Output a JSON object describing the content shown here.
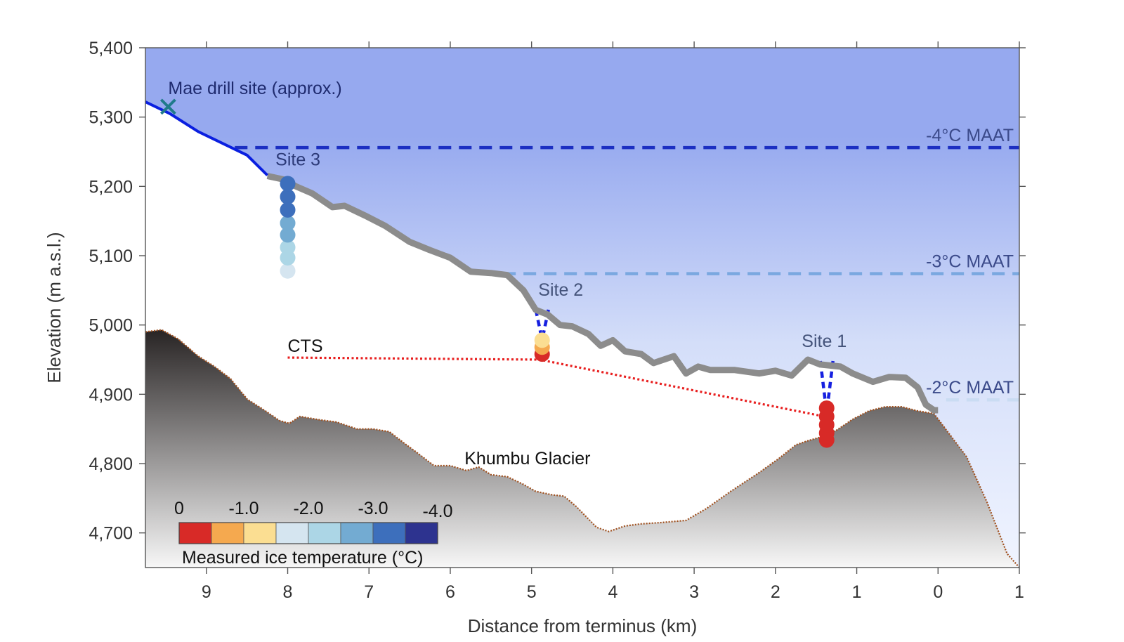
{
  "chart_data": {
    "type": "line",
    "xlabel": "Distance from terminus (km)",
    "ylabel": "Elevation (m a.s.l.)",
    "xlim": [
      9.75,
      -1
    ],
    "ylim": [
      4650,
      5400
    ],
    "x_axis_reversed": true,
    "x_ticks": [
      9,
      8,
      7,
      6,
      5,
      4,
      3,
      2,
      1,
      0,
      -1
    ],
    "x_tick_labels": [
      "9",
      "8",
      "7",
      "6",
      "5",
      "4",
      "3",
      "2",
      "1",
      "0",
      "1"
    ],
    "y_ticks": [
      4700,
      4800,
      4900,
      5000,
      5100,
      5200,
      5300,
      5400
    ],
    "y_tick_labels": [
      "4,700",
      "4,800",
      "4,900",
      "5,000",
      "5,100",
      "5,200",
      "5,300",
      "5,400"
    ],
    "surface_upper": {
      "color": "#0a1fe0",
      "x": [
        9.75,
        9.45,
        9.1,
        8.5,
        8.25
      ],
      "y": [
        5322,
        5305,
        5279,
        5245,
        5216
      ]
    },
    "surface": {
      "color": "#8c8c8c",
      "x": [
        8.25,
        8.05,
        7.9,
        7.7,
        7.45,
        7.3,
        7.05,
        6.8,
        6.5,
        6.25,
        6.0,
        5.75,
        5.5,
        5.3,
        5.1,
        4.95,
        4.8,
        4.65,
        4.5,
        4.3,
        4.15,
        4.0,
        3.85,
        3.65,
        3.5,
        3.25,
        3.1,
        2.95,
        2.8,
        2.5,
        2.2,
        2.0,
        1.8,
        1.6,
        1.45,
        1.2,
        1.05,
        0.8,
        0.6,
        0.4,
        0.25,
        0.15,
        0.05,
        0.0
      ],
      "y": [
        5215,
        5210,
        5200,
        5190,
        5170,
        5172,
        5158,
        5143,
        5120,
        5108,
        5097,
        5077,
        5075,
        5072,
        5050,
        5022,
        5015,
        5000,
        4998,
        4987,
        4970,
        4978,
        4962,
        4958,
        4945,
        4955,
        4930,
        4940,
        4935,
        4935,
        4930,
        4934,
        4927,
        4950,
        4943,
        4940,
        4930,
        4918,
        4925,
        4924,
        4910,
        4885,
        4877,
        4877
      ]
    },
    "bed": {
      "x": [
        9.75,
        9.55,
        9.35,
        9.1,
        8.9,
        8.7,
        8.5,
        8.3,
        8.1,
        7.98,
        7.85,
        7.6,
        7.4,
        7.15,
        6.95,
        6.75,
        6.55,
        6.4,
        6.2,
        6.0,
        5.8,
        5.65,
        5.5,
        5.3,
        5.1,
        4.95,
        4.75,
        4.6,
        4.45,
        4.2,
        4.05,
        3.85,
        3.65,
        3.4,
        3.1,
        2.85,
        2.55,
        2.2,
        1.95,
        1.75,
        1.6,
        1.45,
        1.25,
        1.05,
        0.85,
        0.65,
        0.45,
        0.25,
        0.05,
        -0.35,
        -0.6,
        -0.85,
        -1.0
      ],
      "y": [
        4990,
        4993,
        4980,
        4955,
        4940,
        4922,
        4893,
        4878,
        4862,
        4858,
        4868,
        4863,
        4860,
        4850,
        4850,
        4846,
        4828,
        4815,
        4797,
        4797,
        4790,
        4795,
        4784,
        4781,
        4770,
        4760,
        4755,
        4753,
        4738,
        4708,
        4702,
        4710,
        4713,
        4715,
        4718,
        4735,
        4760,
        4787,
        4808,
        4827,
        4833,
        4838,
        4848,
        4864,
        4876,
        4882,
        4882,
        4876,
        4872,
        4810,
        4745,
        4670,
        4650
      ]
    },
    "maat_lines": [
      {
        "label": "-4°C MAAT",
        "elevation": 5256,
        "x_start": 8.65,
        "color": "#1c2fc2"
      },
      {
        "label": "-3°C MAAT",
        "elevation": 5074,
        "x_start": 5.35,
        "color": "#7aa8e0"
      },
      {
        "label": "-2°C MAAT",
        "elevation": 4892,
        "x_start": -0.1,
        "color": "#cadcf3"
      }
    ],
    "cts": {
      "label": "CTS",
      "color": "#e81f1f",
      "x": [
        8.0,
        4.9,
        1.4
      ],
      "y": [
        4953,
        4950,
        4868
      ]
    },
    "sites": [
      {
        "label": "Site 1",
        "x": 1.4,
        "label_elevation": 4968,
        "top_elevation": 4948
      },
      {
        "label": "Site 2",
        "x": 4.9,
        "label_elevation": 5042,
        "top_elevation": 5022
      },
      {
        "label": "Site 3",
        "x": 8.15,
        "label_elevation": 5230
      }
    ],
    "temperature_measurements": [
      {
        "site": "Site 3",
        "x": 8.0,
        "elevation": 5204,
        "temperature": -3.25
      },
      {
        "site": "Site 3",
        "x": 8.0,
        "elevation": 5185,
        "temperature": -3.25
      },
      {
        "site": "Site 3",
        "x": 8.0,
        "elevation": 5166,
        "temperature": -3.25
      },
      {
        "site": "Site 3",
        "x": 8.0,
        "elevation": 5147,
        "temperature": -2.75
      },
      {
        "site": "Site 3",
        "x": 8.0,
        "elevation": 5130,
        "temperature": -2.75
      },
      {
        "site": "Site 3",
        "x": 8.0,
        "elevation": 5112,
        "temperature": -2.25
      },
      {
        "site": "Site 3",
        "x": 8.0,
        "elevation": 5097,
        "temperature": -2.25
      },
      {
        "site": "Site 3",
        "x": 8.0,
        "elevation": 5078,
        "temperature": -1.75
      },
      {
        "site": "Site 2",
        "x": 4.87,
        "elevation": 4978,
        "temperature": -1.25
      },
      {
        "site": "Site 2",
        "x": 4.87,
        "elevation": 4968,
        "temperature": -0.75
      },
      {
        "site": "Site 2",
        "x": 4.87,
        "elevation": 4958,
        "temperature": -0.25
      },
      {
        "site": "Site 1",
        "x": 1.37,
        "elevation": 4880,
        "temperature": -0.25
      },
      {
        "site": "Site 1",
        "x": 1.37,
        "elevation": 4868,
        "temperature": -0.25
      },
      {
        "site": "Site 1",
        "x": 1.37,
        "elevation": 4856,
        "temperature": -0.25
      },
      {
        "site": "Site 1",
        "x": 1.37,
        "elevation": 4844,
        "temperature": -0.25
      },
      {
        "site": "Site 1",
        "x": 1.37,
        "elevation": 4834,
        "temperature": -0.25
      }
    ],
    "annotations": [
      {
        "text": "Mae drill site (approx.)",
        "marker": "x",
        "x": 9.47,
        "elevation": 5315,
        "marker_color": "#1f7a8a"
      },
      {
        "text": "Khumbu Glacier",
        "x": 5.05,
        "elevation": 4808
      }
    ],
    "colorbar": {
      "title": "Measured ice temperature (°C)",
      "tick_labels": [
        "0",
        "-1.0",
        "-2.0",
        "-3.0",
        "-4.0"
      ],
      "range": [
        0,
        -4
      ],
      "bins": [
        {
          "range": [
            0,
            -0.5
          ],
          "color": "#d82a27"
        },
        {
          "range": [
            -0.5,
            -1.0
          ],
          "color": "#f5a94f"
        },
        {
          "range": [
            -1.0,
            -1.5
          ],
          "color": "#fbde92"
        },
        {
          "range": [
            -1.5,
            -2.0
          ],
          "color": "#d5e5f0"
        },
        {
          "range": [
            -2.0,
            -2.5
          ],
          "color": "#acd6e6"
        },
        {
          "range": [
            -2.5,
            -3.0
          ],
          "color": "#73abd2"
        },
        {
          "range": [
            -3.0,
            -3.5
          ],
          "color": "#3d6fbc"
        },
        {
          "range": [
            -3.5,
            -4.0
          ],
          "color": "#2d338f"
        }
      ]
    },
    "colors": {
      "sky_top": "#96a9ef",
      "sky_bottom": "#f0f4ff",
      "bed_top": "#282424",
      "bed_bottom": "#f7f7f7",
      "bed_outline": "#a0501e",
      "site_link": "#1620e0"
    }
  }
}
